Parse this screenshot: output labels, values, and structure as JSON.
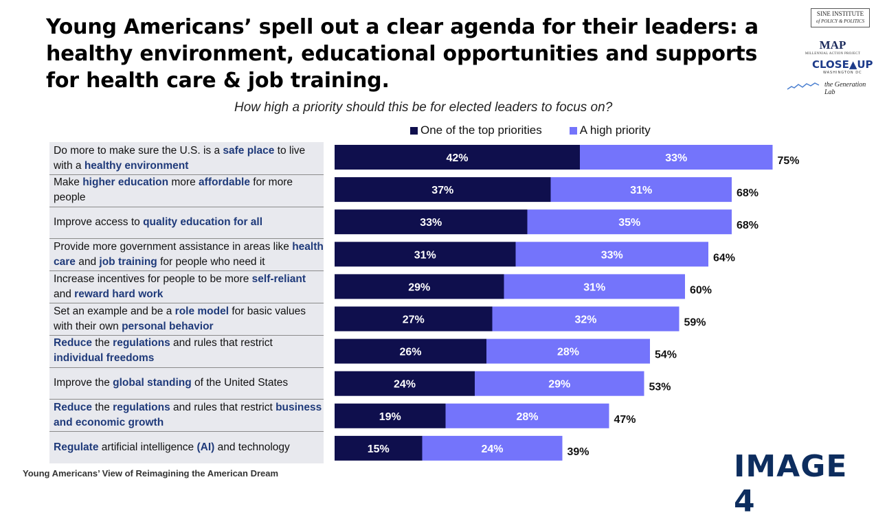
{
  "title": "Young Americans’ spell out a clear agenda for their leaders: a healthy environment, educational opportunities and supports for health care & job training.",
  "logos": {
    "sine_line1": "SINE INSTITUTE",
    "sine_line2": "of POLICY & POLITICS",
    "map": "MAP",
    "map_sub": "MILLENNIAL ACTION PROJECT",
    "closeup": "CLOSE▲UP",
    "closeup_sub": "WASHINGTON DC",
    "generation_lab": "the Generation Lab"
  },
  "footer": "Young Americans’ View of Reimagining the American Dream",
  "image_tag": "IMAGE 4",
  "colors": {
    "top": "#0f0f4d",
    "high": "#7474fb",
    "label_bg": "#e8e9ee",
    "highlight": "#1f3a7a"
  },
  "chart_data": {
    "type": "bar",
    "orientation": "horizontal",
    "stacked": true,
    "title": "How high a priority should this be for elected leaders to focus on?",
    "legend": [
      "One of the top priorities",
      "A high priority"
    ],
    "legend_position": "top",
    "categories": [
      "Do more to make sure the U.S. is a safe place to live with a healthy environment",
      "Make higher education more affordable for more people",
      "Improve access to quality education for all",
      "Provide more government assistance in areas like health care and job training for people who need it",
      "Increase incentives for people to be more self-reliant and reward hard work",
      "Set an example and be a role model for basic values with their own personal behavior",
      "Reduce the regulations and rules that restrict individual freedoms",
      "Improve the global standing of the United States",
      "Reduce the regulations and rules that restrict business and economic growth",
      "Regulate artificial intelligence (AI) and technology"
    ],
    "label_parts": [
      [
        [
          "Do more to make sure the U.S. is a ",
          false
        ],
        [
          "safe place",
          true
        ],
        [
          " to live with a ",
          false
        ],
        [
          "healthy environment",
          true
        ]
      ],
      [
        [
          "Make ",
          false
        ],
        [
          "higher education",
          true
        ],
        [
          " more ",
          false
        ],
        [
          "affordable",
          true
        ],
        [
          " for more people",
          false
        ]
      ],
      [
        [
          "Improve access to ",
          false
        ],
        [
          "quality education for all",
          true
        ]
      ],
      [
        [
          "Provide more government assistance in areas like ",
          false
        ],
        [
          "health care",
          true
        ],
        [
          " and ",
          false
        ],
        [
          "job training",
          true
        ],
        [
          " for people who need it",
          false
        ]
      ],
      [
        [
          "Increase incentives for people to be more ",
          false
        ],
        [
          "self-reliant",
          true
        ],
        [
          " and ",
          false
        ],
        [
          "reward hard work",
          true
        ]
      ],
      [
        [
          "Set an example and be a ",
          false
        ],
        [
          "role model",
          true
        ],
        [
          " for basic values with their own ",
          false
        ],
        [
          "personal behavior",
          true
        ]
      ],
      [
        [
          "Reduce",
          true
        ],
        [
          " the ",
          false
        ],
        [
          "regulations",
          true
        ],
        [
          " and rules that restrict ",
          false
        ],
        [
          "individual freedoms",
          true
        ]
      ],
      [
        [
          "Improve the ",
          false
        ],
        [
          "global standing",
          true
        ],
        [
          " of the United States",
          false
        ]
      ],
      [
        [
          "Reduce",
          true
        ],
        [
          " the ",
          false
        ],
        [
          "regulations",
          true
        ],
        [
          " and rules that restrict ",
          false
        ],
        [
          "business and economic growth",
          true
        ]
      ],
      [
        [
          "Regulate",
          true
        ],
        [
          " artificial intelligence ",
          false
        ],
        [
          "(AI)",
          true
        ],
        [
          " and technology",
          false
        ]
      ]
    ],
    "series": [
      {
        "name": "One of the top priorities",
        "values": [
          42,
          37,
          33,
          31,
          29,
          27,
          26,
          24,
          19,
          15
        ],
        "labels": [
          "42%",
          "37%",
          "33%",
          "31%",
          "29%",
          "27%",
          "26%",
          "24%",
          "19%",
          "15%"
        ]
      },
      {
        "name": "A high priority",
        "values": [
          33,
          31,
          35,
          33,
          31,
          32,
          28,
          29,
          28,
          24
        ],
        "labels": [
          "33%",
          "31%",
          "35%",
          "33%",
          "31%",
          "32%",
          "28%",
          "29%",
          "28%",
          "24%"
        ]
      }
    ],
    "totals": [
      75,
      68,
      68,
      64,
      60,
      59,
      54,
      53,
      47,
      39
    ],
    "total_labels": [
      "75%",
      "68%",
      "68%",
      "64%",
      "60%",
      "59%",
      "54%",
      "53%",
      "47%",
      "39%"
    ],
    "xlim": [
      0,
      100
    ]
  }
}
